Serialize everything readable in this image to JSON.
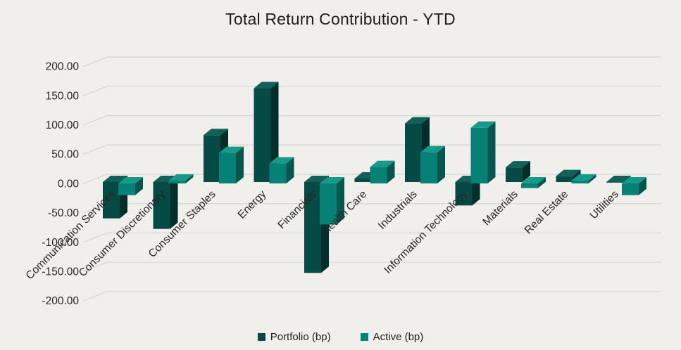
{
  "chart": {
    "title": "Total Return Contribution - YTD"
  },
  "chart_data": {
    "type": "bar",
    "variant": "3d-clustered-column",
    "title": "Total Return Contribution - YTD",
    "xlabel": "",
    "ylabel": "",
    "ylim": [
      -200,
      200
    ],
    "ytick_step": 50,
    "ytick_format": "2dp",
    "grid": true,
    "legend_position": "bottom",
    "background": "#f0efeb",
    "gridline_color": "#d9d8d5",
    "axis_text_color": "#262626",
    "categories": [
      "Communication Services",
      "Consumer Discretionary",
      "Consumer Staples",
      "Energy",
      "Financials",
      "Health Care",
      "Industrials",
      "Information Technology",
      "Materials",
      "Real Estate",
      "Utilities"
    ],
    "series": [
      {
        "name": "Portfolio (bp)",
        "values": [
          -62,
          -80,
          80,
          160,
          -155,
          6,
          100,
          -40,
          25,
          10,
          -1
        ],
        "colors": {
          "front": "#054a45",
          "top": "#11605a",
          "side": "#032e2b"
        }
      },
      {
        "name": "Active (bp)",
        "values": [
          -20,
          5,
          52,
          34,
          -70,
          28,
          53,
          95,
          -8,
          5,
          -20
        ],
        "colors": {
          "front": "#058275",
          "top": "#169a8a",
          "side": "#07564e"
        }
      }
    ]
  }
}
